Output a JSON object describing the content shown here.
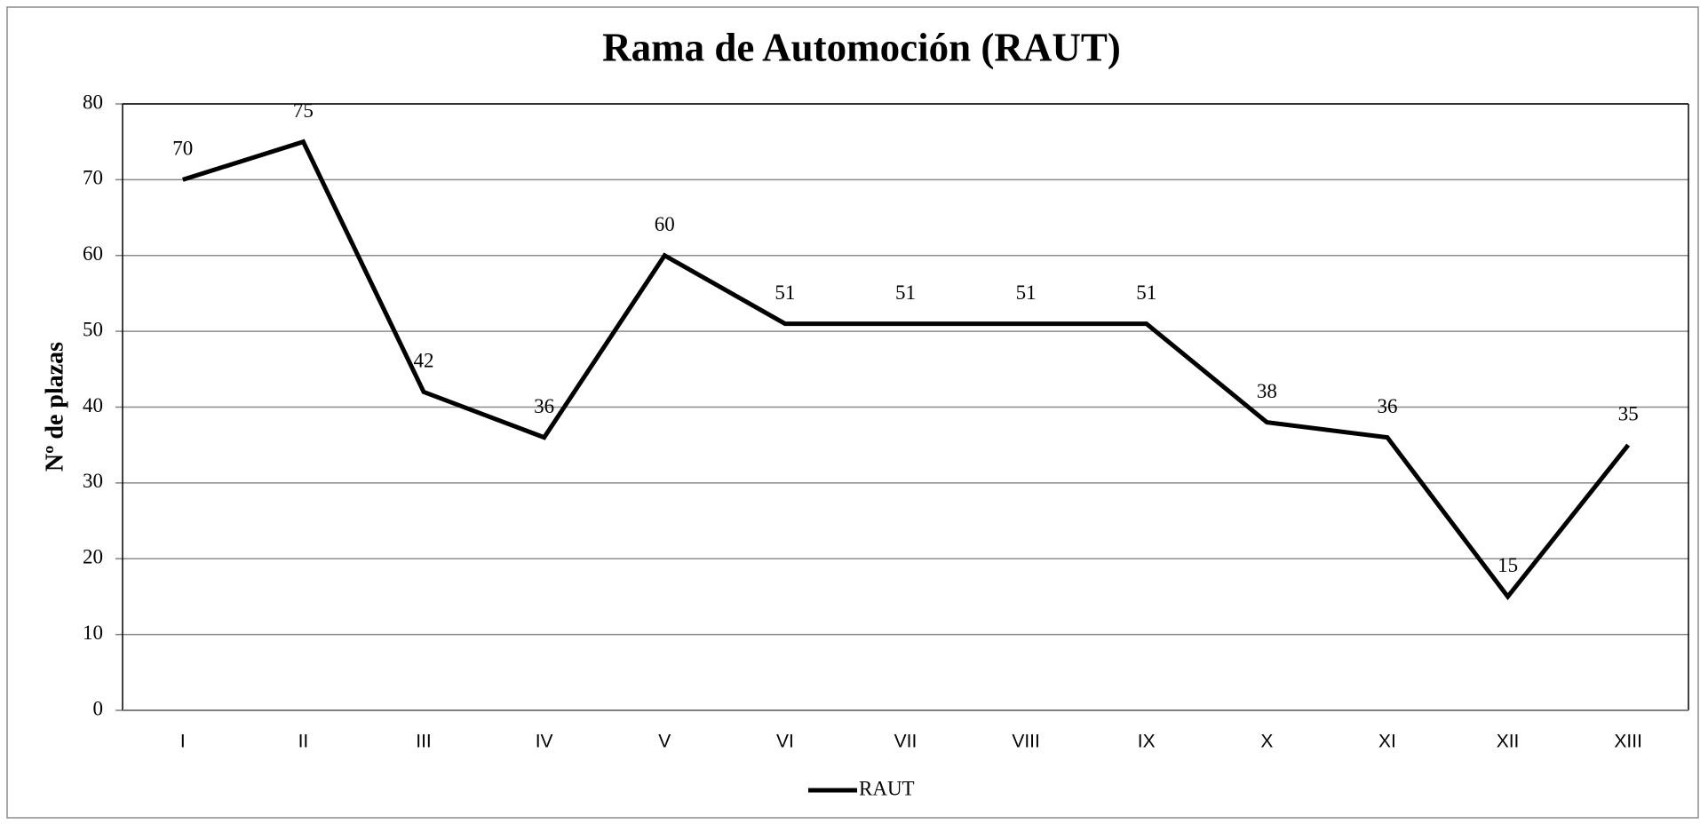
{
  "chart_data": {
    "type": "line",
    "title": "Rama de Automoción (RAUT)",
    "y_label": "Nº de plazas",
    "categories": [
      "I",
      "II",
      "III",
      "IV",
      "V",
      "VI",
      "VII",
      "VIII",
      "IX",
      "X",
      "XI",
      "XII",
      "XIII"
    ],
    "series": [
      {
        "name": "RAUT",
        "color": "#000000",
        "values": [
          70,
          75,
          42,
          36,
          60,
          51,
          51,
          51,
          51,
          38,
          36,
          15,
          35
        ]
      }
    ],
    "ylim": [
      0,
      80
    ],
    "yticks": [
      0,
      10,
      20,
      30,
      40,
      50,
      60,
      70,
      80
    ],
    "grid": true,
    "legend": "bottom"
  }
}
